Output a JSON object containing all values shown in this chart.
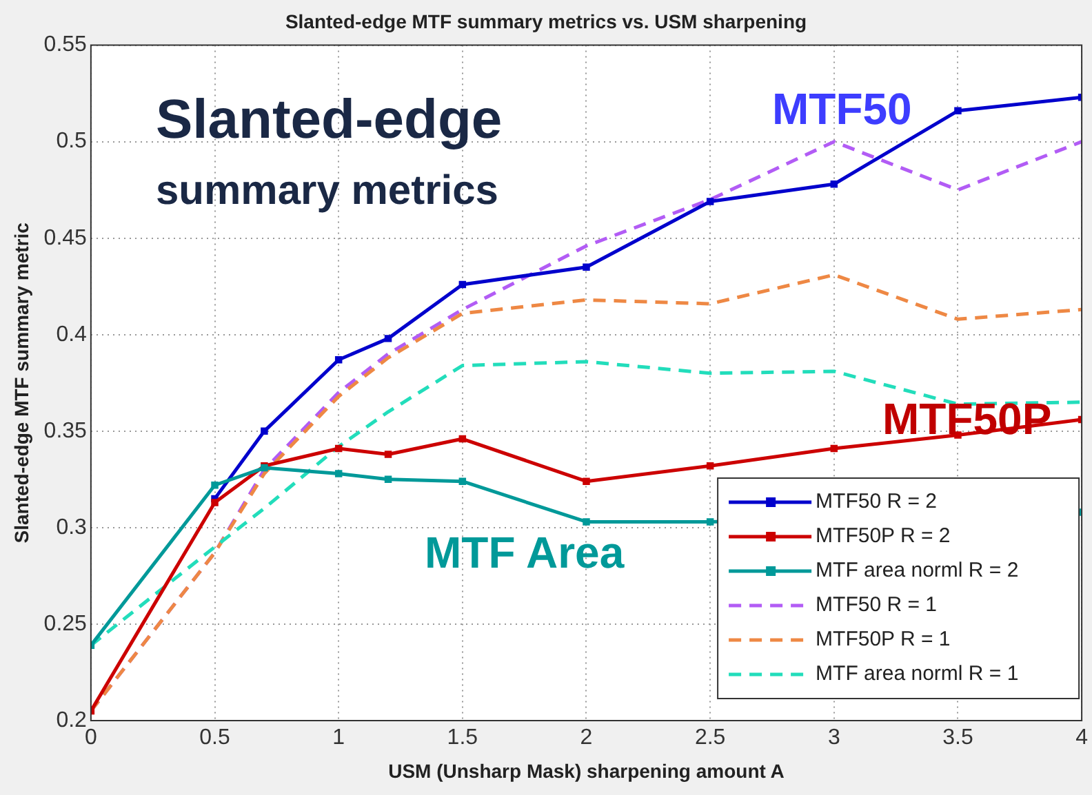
{
  "chart_data": {
    "type": "line",
    "title": "Slanted-edge MTF summary metrics vs. USM sharpening",
    "xlabel": "USM (Unsharp Mask) sharpening amount A",
    "ylabel": "Slanted-edge MTF summary metric",
    "x": [
      0,
      0.5,
      0.7,
      1,
      1.2,
      1.5,
      2,
      2.5,
      3,
      3.5,
      4
    ],
    "xlim": [
      0,
      4
    ],
    "xticks": [
      0,
      0.5,
      1,
      1.5,
      2,
      2.5,
      3,
      3.5,
      4
    ],
    "ylim": [
      0.2,
      0.55
    ],
    "yticks": [
      0.2,
      0.25,
      0.3,
      0.35,
      0.4,
      0.45,
      0.5,
      0.55
    ],
    "grid": true,
    "legend": "bottom right",
    "series": [
      {
        "name": "MTF50 R = 2",
        "color": "#0000cc",
        "marker": "square",
        "line_style": "solid",
        "values": [
          null,
          0.315,
          0.35,
          0.387,
          0.398,
          0.426,
          0.435,
          0.469,
          0.478,
          0.516,
          0.523
        ]
      },
      {
        "name": "MTF50P R = 2",
        "color": "#cc0000",
        "marker": "square",
        "line_style": "solid",
        "values": [
          0.205,
          0.313,
          0.332,
          0.341,
          0.338,
          0.346,
          0.324,
          0.332,
          0.341,
          0.348,
          0.356
        ]
      },
      {
        "name": "MTF area norml R = 2",
        "color": "#009999",
        "marker": "square",
        "line_style": "solid",
        "values": [
          0.239,
          0.322,
          0.331,
          0.328,
          0.325,
          0.324,
          0.303,
          0.303,
          null,
          null,
          0.308
        ]
      },
      {
        "name": "MTF50 R = 1",
        "color": "#b25cf5",
        "marker": "none",
        "line_style": "dashed",
        "values": [
          0.205,
          0.287,
          0.33,
          0.37,
          0.39,
          0.413,
          0.446,
          0.47,
          0.5,
          0.475,
          0.5
        ]
      },
      {
        "name": "MTF50P R = 1",
        "color": "#ee8844",
        "marker": "none",
        "line_style": "dashed",
        "values": [
          0.205,
          0.287,
          0.328,
          0.368,
          0.388,
          0.411,
          0.418,
          0.416,
          0.431,
          0.408,
          0.413
        ]
      },
      {
        "name": "MTF area norml R = 1",
        "color": "#22ddbb",
        "marker": "none",
        "line_style": "dashed",
        "values": [
          0.239,
          0.29,
          0.31,
          0.342,
          0.36,
          0.384,
          0.386,
          0.38,
          0.381,
          0.364,
          0.365
        ]
      }
    ],
    "annotations": [
      "Slanted-edge",
      "summary metrics",
      "MTF50",
      "MTF50P",
      "MTF Area"
    ]
  }
}
